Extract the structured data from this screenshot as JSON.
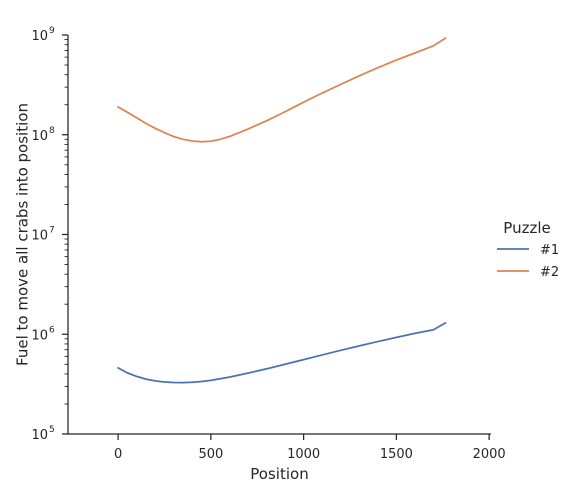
{
  "chart_data": {
    "type": "line",
    "xlabel": "Position",
    "ylabel": "Fuel to move all crabs into position",
    "xlim": [
      -270,
      2010
    ],
    "ylim": [
      100000,
      1000000000
    ],
    "yscale": "log",
    "xticks": [
      0,
      500,
      1000,
      1500,
      2000
    ],
    "xtick_labels": [
      "0",
      "500",
      "1000",
      "1500",
      "2000"
    ],
    "yticks": [
      100000,
      1000000,
      10000000,
      100000000,
      1000000000
    ],
    "ytick_labels": [
      {
        "base": "10",
        "exp": "5"
      },
      {
        "base": "10",
        "exp": "6"
      },
      {
        "base": "10",
        "exp": "7"
      },
      {
        "base": "10",
        "exp": "8"
      },
      {
        "base": "10",
        "exp": "9"
      }
    ],
    "grid": false,
    "legend": {
      "title": "Puzzle",
      "placement": "center-right outside"
    },
    "series": [
      {
        "name": "#1",
        "color": "#4c72b0",
        "points": [
          [
            0,
            460000
          ],
          [
            50,
            410000
          ],
          [
            100,
            378000
          ],
          [
            150,
            355000
          ],
          [
            200,
            341000
          ],
          [
            250,
            332000
          ],
          [
            300,
            328000
          ],
          [
            350,
            327000
          ],
          [
            400,
            330000
          ],
          [
            450,
            336000
          ],
          [
            500,
            345000
          ],
          [
            600,
            372000
          ],
          [
            700,
            408000
          ],
          [
            800,
            450000
          ],
          [
            900,
            500000
          ],
          [
            1000,
            557000
          ],
          [
            1100,
            620000
          ],
          [
            1200,
            690000
          ],
          [
            1300,
            765000
          ],
          [
            1400,
            845000
          ],
          [
            1500,
            930000
          ],
          [
            1600,
            1020000
          ],
          [
            1700,
            1110000
          ],
          [
            1765,
            1300000
          ]
        ]
      },
      {
        "name": "#2",
        "color": "#dd8452",
        "points": [
          [
            0,
            190000000
          ],
          [
            50,
            168000000
          ],
          [
            100,
            148000000
          ],
          [
            150,
            130000000
          ],
          [
            200,
            116000000
          ],
          [
            250,
            105000000
          ],
          [
            300,
            96000000
          ],
          [
            350,
            90000000
          ],
          [
            400,
            86500000
          ],
          [
            450,
            85000000
          ],
          [
            500,
            86000000
          ],
          [
            550,
            90000000
          ],
          [
            600,
            96000000
          ],
          [
            700,
            114000000
          ],
          [
            800,
            138000000
          ],
          [
            900,
            170000000
          ],
          [
            1000,
            212000000
          ],
          [
            1100,
            262000000
          ],
          [
            1200,
            320000000
          ],
          [
            1300,
            390000000
          ],
          [
            1400,
            470000000
          ],
          [
            1500,
            560000000
          ],
          [
            1600,
            660000000
          ],
          [
            1700,
            780000000
          ],
          [
            1765,
            930000000
          ]
        ]
      }
    ]
  }
}
